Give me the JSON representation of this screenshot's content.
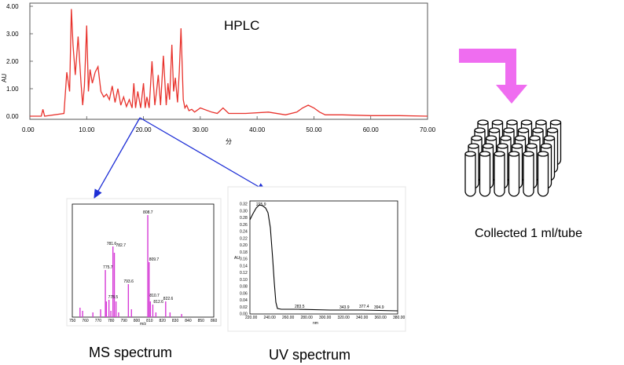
{
  "hplc": {
    "title": "HPLC",
    "ylabel": "AU",
    "xlabel": "分",
    "x_ticks": [
      "0.00",
      "10.00",
      "20.00",
      "30.00",
      "40.00",
      "50.00",
      "60.00",
      "70.00"
    ],
    "y_ticks": [
      "0.00",
      "1.00",
      "2.00",
      "3.00",
      "4.00"
    ],
    "line_color": "#e8322c"
  },
  "ms": {
    "label": "MS spectrum",
    "color": "#d63bd6",
    "xlabel": "m/z",
    "x_ticks": [
      "750",
      "760",
      "770",
      "780",
      "790",
      "800",
      "810",
      "820",
      "830",
      "840",
      "850",
      "860"
    ],
    "peak_labels": [
      "808.7",
      "781.6",
      "782.7",
      "809.7",
      "775.7",
      "778.5",
      "793.6",
      "810.7",
      "812.6",
      "822.6"
    ]
  },
  "uv": {
    "label": "UV spectrum",
    "ylabel": "AU",
    "xlabel": "nm",
    "peak_labels": [
      "225.9",
      "283.5",
      "343.9",
      "377.4",
      "394.9"
    ],
    "x_ticks": [
      "220.00",
      "240.00",
      "260.00",
      "280.00",
      "300.00",
      "320.00",
      "340.00",
      "360.00",
      "380.00"
    ],
    "y_ticks": [
      "0.32",
      "0.30",
      "0.28",
      "0.26",
      "0.24",
      "0.22",
      "0.20",
      "0.18",
      "0.16",
      "0.14",
      "0.12",
      "0.10",
      "0.08",
      "0.06",
      "0.04",
      "0.02",
      "0.00"
    ]
  },
  "tubes": {
    "label": "Collected 1 ml/tube"
  },
  "chart_data": {
    "type": "line",
    "title": "HPLC",
    "xlabel": "分",
    "ylabel": "AU",
    "xlim": [
      0,
      70
    ],
    "ylim": [
      0,
      4
    ],
    "x": [
      0,
      2,
      2.3,
      2.6,
      6,
      6.5,
      7,
      7.3,
      7.6,
      8,
      8.5,
      9,
      9.3,
      9.6,
      10,
      10.3,
      10.6,
      11,
      11.5,
      12,
      12.5,
      13,
      13.5,
      14,
      14.5,
      15,
      15.5,
      16,
      16.5,
      17,
      17.5,
      18,
      18.3,
      18.6,
      19,
      19.5,
      20,
      20.3,
      20.6,
      21,
      21.5,
      22,
      22.3,
      22.6,
      23,
      23.5,
      24,
      24.3,
      24.6,
      25,
      25.3,
      25.6,
      26,
      26.3,
      26.6,
      27,
      27.3,
      27.6,
      28,
      28.5,
      29,
      30,
      32,
      33,
      34,
      35,
      38,
      42,
      45,
      47,
      48,
      49,
      50,
      51,
      52,
      55,
      60,
      65,
      70
    ],
    "y": [
      0,
      0,
      0.25,
      0,
      0.1,
      1.6,
      0.9,
      3.9,
      2.6,
      1.5,
      2.9,
      1.2,
      0.4,
      1.1,
      3.3,
      0.9,
      1.7,
      1.2,
      1.6,
      1.8,
      0.9,
      0.7,
      0.8,
      0.6,
      1.1,
      0.5,
      1.0,
      0.4,
      0.7,
      0.35,
      0.6,
      0.3,
      1.2,
      0.3,
      0.9,
      0.3,
      1.2,
      0.3,
      0.7,
      0.3,
      2.0,
      0.4,
      0.9,
      1.5,
      0.4,
      2.2,
      0.4,
      1.2,
      0.6,
      2.6,
      0.9,
      1.4,
      0.5,
      1.6,
      3.2,
      0.6,
      0.3,
      0.4,
      0.2,
      0.25,
      0.15,
      0.3,
      0.15,
      0.1,
      0.3,
      0.1,
      0.1,
      0.15,
      0.05,
      0.15,
      0.3,
      0.4,
      0.3,
      0.15,
      0.05,
      0.05,
      0.02,
      0.02,
      0.0
    ]
  }
}
